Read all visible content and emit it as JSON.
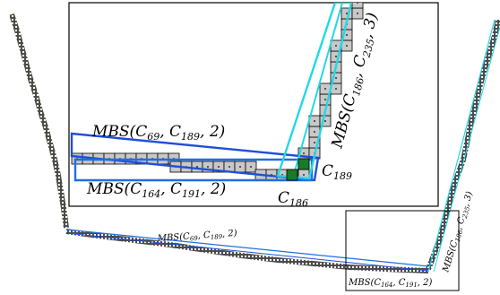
{
  "figure": {
    "labels": {
      "mbs_c69_c189": {
        "name": "MBS",
        "args": [
          "C",
          "69",
          ", ",
          "C",
          "189",
          ", 2"
        ]
      },
      "mbs_c164_c191": {
        "name": "MBS",
        "args": [
          "C",
          "164",
          ", ",
          "C",
          "191",
          ", 2"
        ]
      },
      "mbs_c186_c235": {
        "name": "MBS",
        "args": [
          "C",
          "186",
          ", ",
          "C",
          "235",
          ", 3"
        ]
      },
      "c189": {
        "letter": "C",
        "sub": "189"
      },
      "c186": {
        "letter": "C",
        "sub": "186"
      }
    },
    "colors": {
      "mbs_a": "#1f4fd8",
      "mbs_b": "#1f6fe0",
      "mbs_c": "#22d8e6",
      "left_fill": "#e8f000",
      "right_fill": "#22d8e6",
      "pixel_fill": "#c8c8c8",
      "corner_fill": "#1a7a2a"
    }
  }
}
